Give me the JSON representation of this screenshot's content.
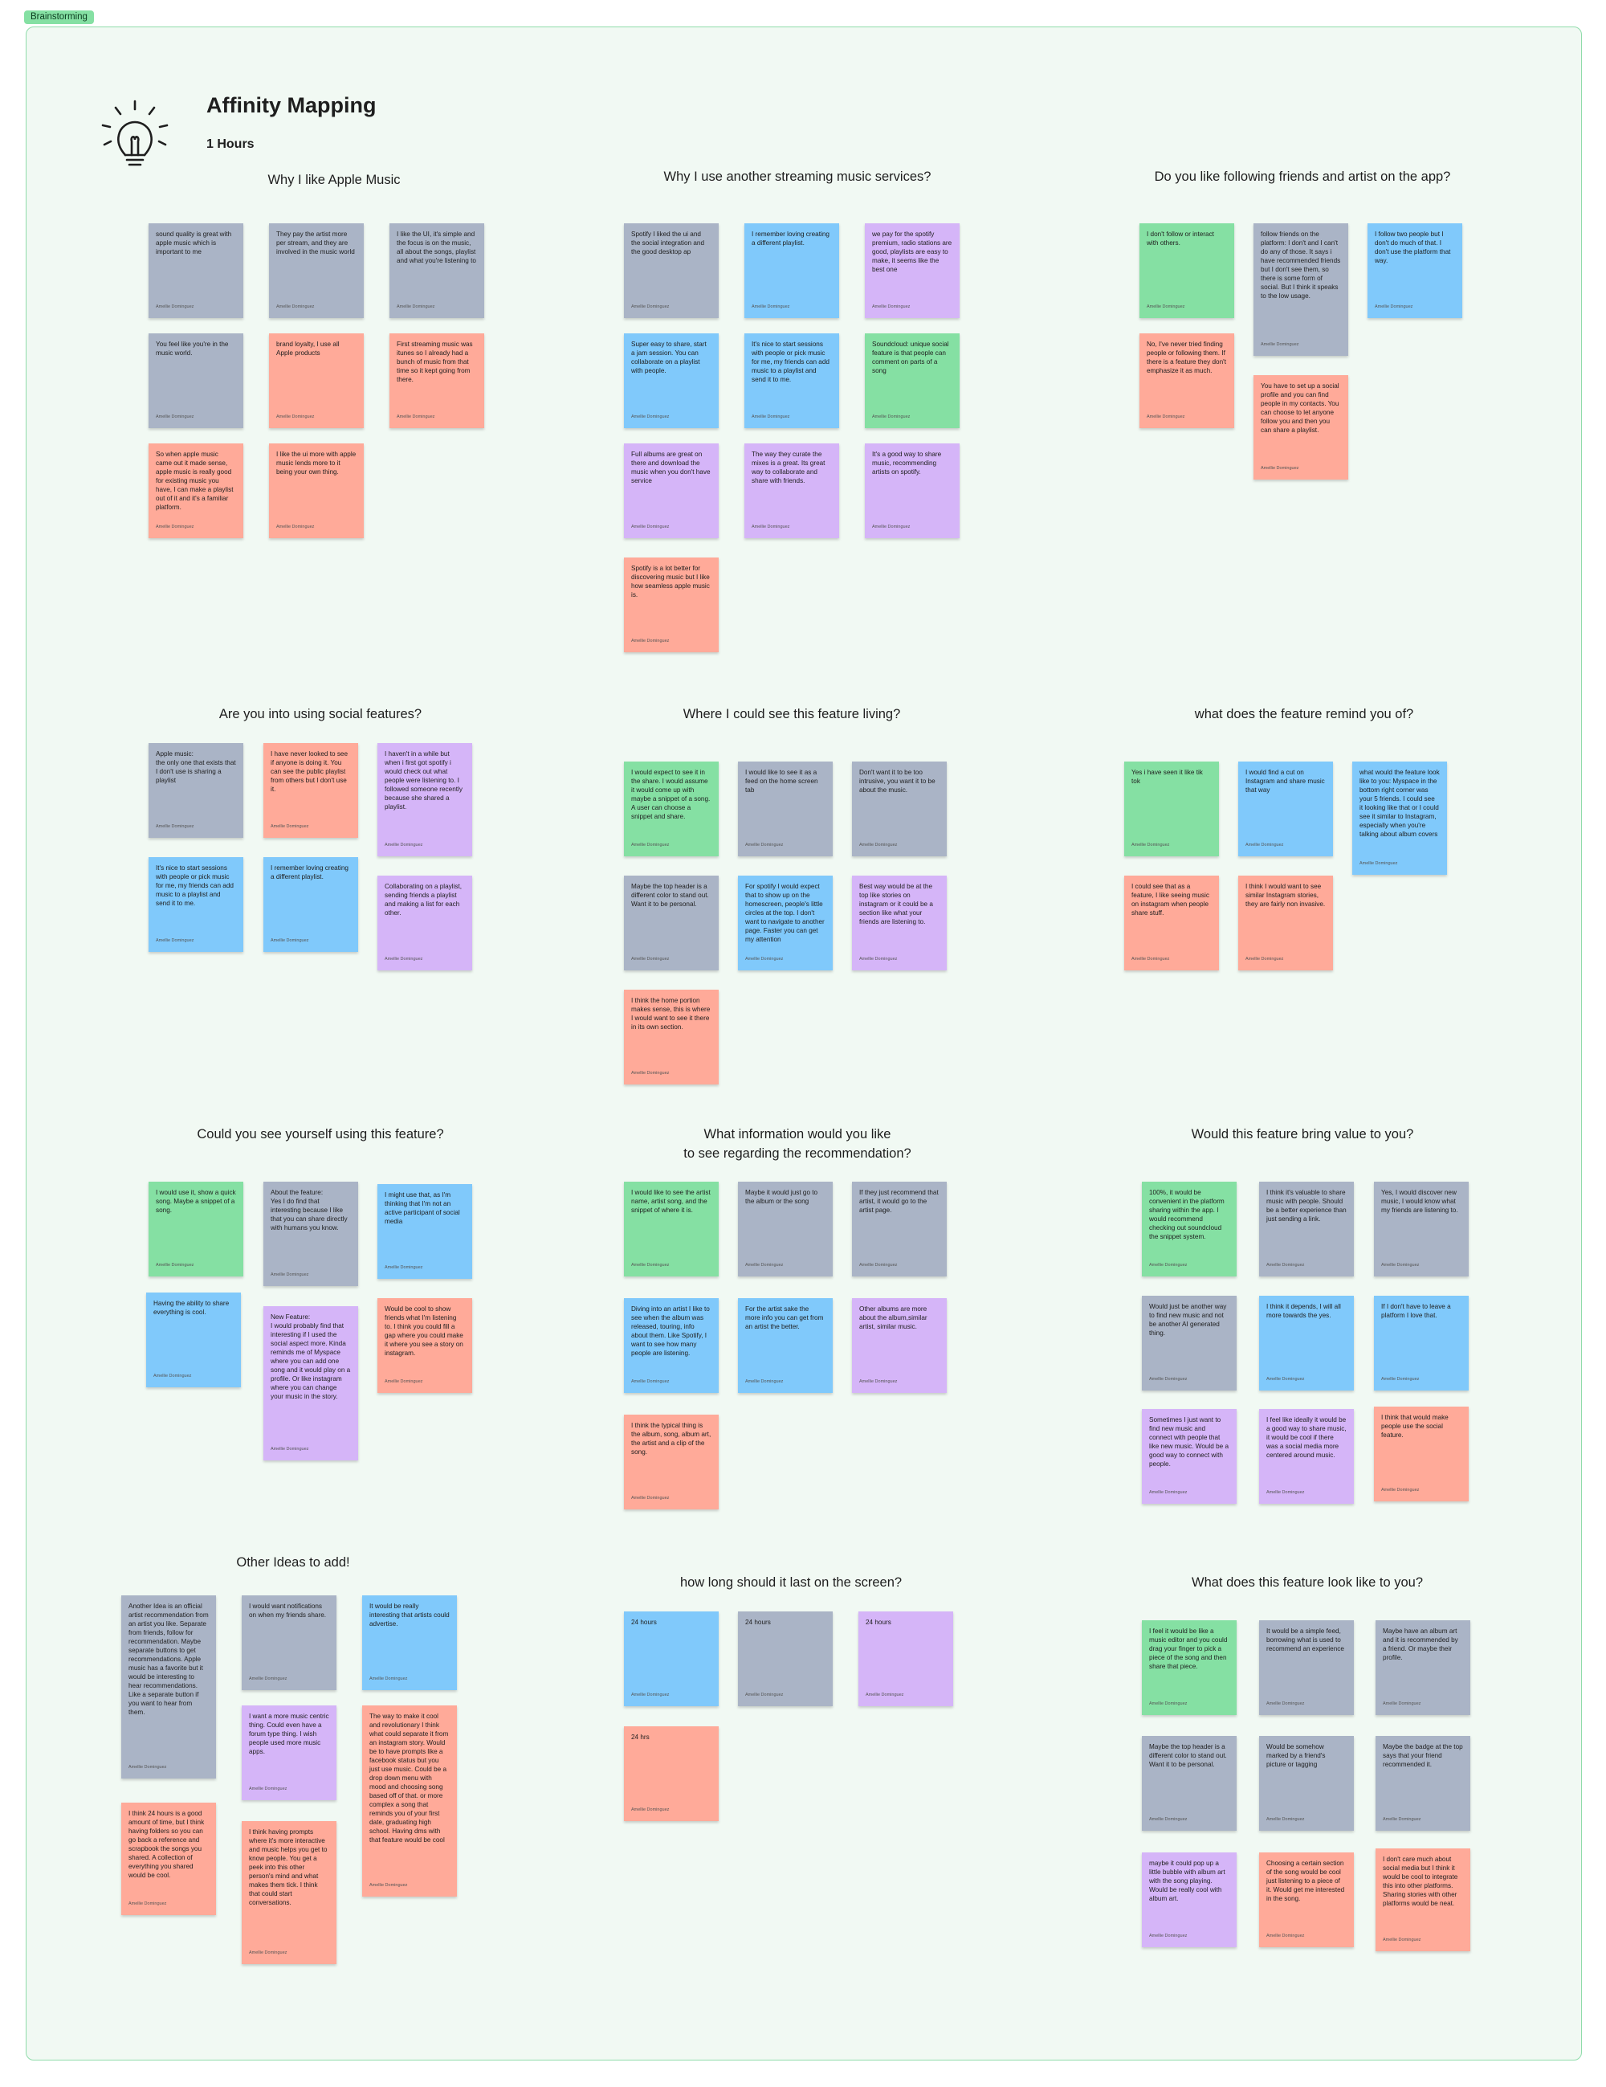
{
  "frame": {
    "tag": "Brainstorming"
  },
  "header": {
    "title": "Affinity Mapping",
    "duration": "1 Hours",
    "icon": "lightbulb-icon"
  },
  "colors": {
    "board_bg": "#f1f9f3",
    "board_border": "#8fdcaa",
    "gray": "#aab4c6",
    "blue": "#80c9fb",
    "violet": "#d5b5f8",
    "green": "#85e0a3",
    "red": "#ffaa99"
  },
  "author_name": "Amellie Dominguez",
  "sections": [
    {
      "title": "Why I like Apple Music",
      "notes": [
        {
          "color": "gray",
          "text": "sound quality is great with apple music which is important to me"
        },
        {
          "color": "gray",
          "text": "They pay the artist more per stream, and they are involved in the music world"
        },
        {
          "color": "gray",
          "text": "I like the UI, it's simple and the focus is on the music, all about the songs, playlist and what you're listening to"
        },
        {
          "color": "gray",
          "text": " You feel like you're in the music world."
        },
        {
          "color": "red",
          "text": "brand loyalty, I use all Apple products"
        },
        {
          "color": "red",
          "text": "First streaming music was itunes so I already had a bunch of music from that time so it kept going from there."
        },
        {
          "color": "red",
          "text": "So when apple music came out it made sense, apple music is really good for existing music you have, I can make a playlist out of it and it's a familiar platform."
        },
        {
          "color": "red",
          "text": " I like the ui more with apple music lends more to it being your own thing."
        }
      ]
    },
    {
      "title": "Why I use another streaming music services?",
      "notes": [
        {
          "color": "gray",
          "text": "Spotify I liked the ui and the social integration and the good desktop ap"
        },
        {
          "color": "blue",
          "text": "I remember loving creating a different playlist."
        },
        {
          "color": "violet",
          "text": "we pay for the spotify premium, radio stations are good, playlists are easy to make, it seems like the best one"
        },
        {
          "color": "blue",
          "text": "Super easy to share, start a jam session. You can collaborate on a playlist with people."
        },
        {
          "color": "blue",
          "text": "It's nice to start sessions with people or pick music for me, my friends can add music to a playlist and send it to me."
        },
        {
          "color": "green",
          "text": "Soundcloud: unique social feature is that people can comment on parts of a song"
        },
        {
          "color": "violet",
          "text": "Full albums are great on there and download the music when you don't have service"
        },
        {
          "color": "violet",
          "text": "The way they curate the mixes is a great. Its great way to collaborate and share with friends."
        },
        {
          "color": "violet",
          "text": "It's a good way to share music, recommending artists on spotify."
        },
        {
          "color": "red",
          "text": "Spotify is a lot better for discovering music but I like how seamless apple music is."
        }
      ]
    },
    {
      "title": "Do you like following friends and artist on the app?",
      "notes": [
        {
          "color": "green",
          "text": "I don't follow or interact with others."
        },
        {
          "color": "gray",
          "text": "follow friends on the platform:  I don't and I can't do any of those. It says i have recommended friends but I don't see them, so there is some form of social. But I think it speaks to the low usage."
        },
        {
          "color": "blue",
          "text": "I follow two people but I don't do much of that. I don't use the platform that way."
        },
        {
          "color": "red",
          "text": "No, I've never tried finding people or following them. If there is a feature they don't emphasize it as much."
        },
        {
          "color": "red",
          "text": "You have to set up a social profile and you can find people in my contacts. You can choose to let anyone follow you and then you can share a playlist."
        }
      ]
    },
    {
      "title": "Are you into using social features?",
      "notes": [
        {
          "color": "gray",
          "text": "Apple music:\nthe only one that exists that I don't use is sharing a playlist"
        },
        {
          "color": "red",
          "text": "I have never looked to see if anyone is doing it. You can see the public playlist from others but I don't use it."
        },
        {
          "color": "violet",
          "text": "I haven't in a while but when i first got spotify i would check out what people were listening to. I followed someone recently because she shared a playlist."
        },
        {
          "color": "blue",
          "text": "It's nice to start sessions with people or pick music for me, my friends can add music to a playlist and send it to me."
        },
        {
          "color": "blue",
          "text": "I remember loving creating a different playlist."
        },
        {
          "color": "violet",
          "text": "Collaborating on a playlist, sending friends a playlist and making a list for each other."
        }
      ]
    },
    {
      "title": "Where I could see this feature living?",
      "notes": [
        {
          "color": "green",
          "text": "I would expect to see it in the share. I would assume it would come up with maybe a snippet of a song. A user can choose a snippet and share."
        },
        {
          "color": "gray",
          "text": "I would like to see it as a feed on the home screen tab"
        },
        {
          "color": "gray",
          "text": "Don't want it to be too intrusive, you want it to be about the music."
        },
        {
          "color": "gray",
          "text": "Maybe the top header is a different color to stand out. Want it to be personal."
        },
        {
          "color": "blue",
          "text": "For spotify I would expect that to show up on the homescreen, people's little circles at the top. I don't want to navigate to another page. Faster you can get my attention"
        },
        {
          "color": "violet",
          "text": "Best way would be at the top like stories on instagram or it could be a section like what your friends are listening to."
        },
        {
          "color": "red",
          "text": "I think the home portion makes sense, this is where I would want to see it there in its own section."
        }
      ]
    },
    {
      "title": "what does the feature remind you of?",
      "notes": [
        {
          "color": "green",
          "text": "Yes i have seen it like tik tok"
        },
        {
          "color": "blue",
          "text": "I would find a cut on Instagram and share music that way"
        },
        {
          "color": "blue",
          "text": "what would the feature look like to you: Myspace in the bottom right corner was your 5 friends. I could see it looking like that or I could see it similar to Instagram, especially when you're talking about album covers"
        },
        {
          "color": "red",
          "text": "I could see that as a feature, I like seeing music on instagram when people share stuff."
        },
        {
          "color": "red",
          "text": "I think I would want to see similar Instagram stories, they are fairly non invasive."
        }
      ]
    },
    {
      "title": "Could you see yourself using this feature?",
      "notes": [
        {
          "color": "green",
          "text": "I would use it, show a quick song. Maybe a snippet of a song."
        },
        {
          "color": "gray",
          "text": "About the feature:\nYes I do find that interesting because I like that you can share directly with humans you know."
        },
        {
          "color": "blue",
          "text": "I might use that, as I'm thinking that I'm not an active participant of social media"
        },
        {
          "color": "blue",
          "text": "Having the ability to share everything is cool."
        },
        {
          "color": "violet",
          "text": "New Feature:\nI would probably find that interesting if I used the social aspect more. Kinda reminds me of Myspace where you can add one song and it would play on a profile. Or like instagram where you can change your music in the story."
        },
        {
          "color": "red",
          "text": "Would be cool to show friends what I'm listening to. I think you could fill a gap where you could make it where you see a story on instagram."
        }
      ]
    },
    {
      "title": "What information would you like\nto see regarding the recommendation?",
      "notes": [
        {
          "color": "green",
          "text": "I would like to see the artist name, artist song, and the snippet of where it is."
        },
        {
          "color": "gray",
          "text": "Maybe it would just go to the album or the song"
        },
        {
          "color": "gray",
          "text": "If they just recommend that artist, it would go to the artist page."
        },
        {
          "color": "blue",
          "text": "Diving into an artist I like to see when the album was released, touring, info about them. Like Spotify, I want to see how many people are listening."
        },
        {
          "color": "blue",
          "text": "For the artist sake the more info you can get from an artist the better."
        },
        {
          "color": "violet",
          "text": "Other albums are more about the album,similar artist, similar music."
        },
        {
          "color": "red",
          "text": "I think the typical thing is the album, song, album art, the artist and a clip of the song."
        }
      ]
    },
    {
      "title": "Would this feature bring value to you?",
      "notes": [
        {
          "color": "green",
          "text": "100%, it would be convenient in the platform sharing within the app. I would recommend checking out soundcloud the snippet system."
        },
        {
          "color": "gray",
          "text": "I think it's valuable to share music with people. Should be a better experience than just sending a link."
        },
        {
          "color": "gray",
          "text": "Yes, I would discover new music, I would know what my friends are listening to."
        },
        {
          "color": "gray",
          "text": "Would just be another way to find new music and not be another AI generated thing."
        },
        {
          "color": "blue",
          "text": "I think it depends, I will all more towards the yes."
        },
        {
          "color": "blue",
          "text": "If I don't have to leave a platform I love that."
        },
        {
          "color": "violet",
          "text": "Sometimes I just want to find new music and connect with people that like new music. Would be a good way to connect with people."
        },
        {
          "color": "violet",
          "text": "I feel like ideally it would be a good way to share music, it would be cool if there was a social media more centered around music."
        },
        {
          "color": "red",
          "text": "I think that would make people use the social feature."
        }
      ]
    },
    {
      "title": "Other Ideas to add!",
      "notes": [
        {
          "color": "gray",
          "text": "Another Idea is an official artist recommendation from an artist you like. Separate from friends, follow for recommendation. Maybe separate buttons to get recommendations. Apple music has a favorite but it would be interesting to hear recommendations. Like a separate button if you want to hear from them."
        },
        {
          "color": "gray",
          "text": "I would want notifications on when my friends share."
        },
        {
          "color": "blue",
          "text": "It would be really interesting that artists could advertise."
        },
        {
          "color": "violet",
          "text": "I want a more music centric thing. Could even have a forum type thing. I wish people used more music apps."
        },
        {
          "color": "red",
          "text": "I think 24 hours is a good amount of time, but I think having folders so you can go back a reference and scrapbook the songs you shared. A collection of everything you shared would be cool."
        },
        {
          "color": "red",
          "text": " I think having prompts where it's more interactive and music helps you get to know people. You get a peek into this other person's mind and what makes them tick. I think that could start conversations."
        },
        {
          "color": "red",
          "text": "The way to make it cool and revolutionary I think what could separate it from an instagram story. Would be to have prompts like a facebook status but you just use music. Could be a drop down menu with mood and choosing song based off of that. or more complex a song that reminds you of your first date, graduating high school. Having dms with that feature would be cool"
        }
      ]
    },
    {
      "title": "how long should it last on the screen?",
      "notes": [
        {
          "color": "blue",
          "text": "24 hours"
        },
        {
          "color": "gray",
          "text": "24 hours"
        },
        {
          "color": "violet",
          "text": "24 hours"
        },
        {
          "color": "red",
          "text": "24 hrs"
        }
      ]
    },
    {
      "title": "What does this feature look like to you?",
      "notes": [
        {
          "color": "green",
          "text": "I feel it would be like a music editor and you could drag your finger to pick a piece of the song and then share that piece."
        },
        {
          "color": "gray",
          "text": "It would be a simple feed, borrowing what is used to recommend an experience"
        },
        {
          "color": "gray",
          "text": "Maybe have an album art and it is recommended by a friend. Or maybe their profile."
        },
        {
          "color": "gray",
          "text": "Maybe the top header is a different color to stand out. Want it to be personal."
        },
        {
          "color": "gray",
          "text": "Would be somehow marked by a friend's picture or tagging"
        },
        {
          "color": "gray",
          "text": "Maybe the badge at the top says that your friend recommended it."
        },
        {
          "color": "violet",
          "text": "maybe it could pop up a little bubble with album art with the song playing. Would be really cool with album art."
        },
        {
          "color": "red",
          "text": "Choosing a certain section of the song would be cool just listening to a piece of it. Would get me interested in the song."
        },
        {
          "color": "red",
          "text": "I don't care much about social media but I think it would be cool to integrate this into other platforms. Sharing stories with other platforms would be neat."
        }
      ]
    }
  ]
}
